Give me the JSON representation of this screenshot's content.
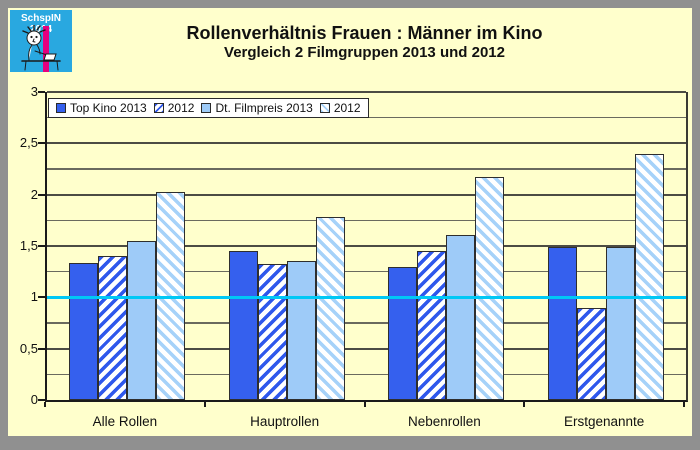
{
  "logo": {
    "text": "SchspIN 2014"
  },
  "title": "Rollenverhältnis Frauen : Männer im Kino",
  "subtitle": "Vergleich 2 Filmgruppen 2013 und 2012",
  "colors": {
    "background": "#ffffcc",
    "frame": "#909090",
    "bar_solid_blue": "#3560ee",
    "bar_hatch_blue": "#2f58ec",
    "bar_solid_lightblue": "#9ecbf8",
    "bar_hatch_lightblue": "#a6d2f9",
    "reference_line": "#00c8f5",
    "logo_background": "#29a8e0",
    "logo_stripe": "#e6007e"
  },
  "chart_data": {
    "type": "bar",
    "categories": [
      "Alle Rollen",
      "Hauptrollen",
      "Nebenrollen",
      "Erstgenannte"
    ],
    "series": [
      {
        "name": "Top Kino 2013",
        "style": "solid-blue",
        "values": [
          1.33,
          1.45,
          1.3,
          1.49
        ]
      },
      {
        "name": "2012",
        "style": "hatch-blue",
        "values": [
          1.4,
          1.32,
          1.45,
          0.9
        ]
      },
      {
        "name": "Dt. Filmpreis 2013",
        "style": "solid-lightblue",
        "values": [
          1.55,
          1.35,
          1.61,
          1.49
        ]
      },
      {
        "name": "2012",
        "style": "hatch-lightblue",
        "values": [
          2.03,
          1.78,
          2.17,
          2.4
        ]
      }
    ],
    "ylim": [
      0,
      3
    ],
    "y_major_step": 0.5,
    "y_minor_step": 0.25,
    "y_tick_labels": [
      "0",
      "0,5",
      "1",
      "1,5",
      "2",
      "2,5",
      "3"
    ],
    "reference_line": 1.0,
    "grid": true,
    "legend_position": "top-left-inside"
  }
}
